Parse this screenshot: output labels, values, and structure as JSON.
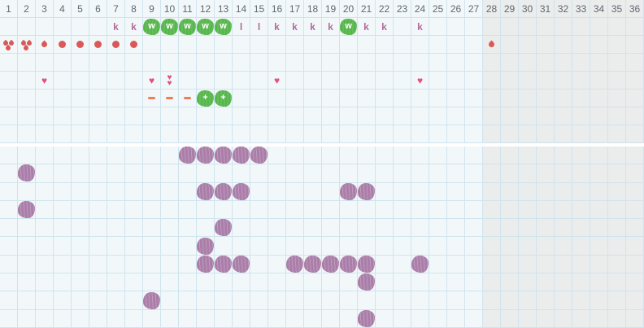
{
  "colors": {
    "bg_light": "#f2f8fa",
    "bg_gray": "#ebecec",
    "grid_line": "#cfe4ee",
    "day_number": "#5f686f",
    "letter": "#b4689d",
    "green": "#56b54b",
    "red": "#db5858",
    "heart": "#e1527d",
    "dash": "#ef7d55",
    "purple": "#aa7ea8"
  },
  "days": [
    "1",
    "2",
    "3",
    "4",
    "5",
    "6",
    "7",
    "8",
    "9",
    "10",
    "11",
    "12",
    "13",
    "14",
    "15",
    "16",
    "17",
    "18",
    "19",
    "20",
    "21",
    "22",
    "23",
    "24",
    "25",
    "26",
    "27",
    "28",
    "29",
    "30",
    "31",
    "32",
    "33",
    "34",
    "35",
    "36"
  ],
  "gray_from_day": 28,
  "icons": {
    "heart_glyph": "♥"
  },
  "top_section": {
    "rows": [
      {
        "name": "day-numbers",
        "kind": "numbers",
        "marks": []
      },
      {
        "name": "mucus-letters",
        "kind": "marks",
        "marks": [
          {
            "day": 7,
            "type": "letter",
            "label": "k"
          },
          {
            "day": 8,
            "type": "letter",
            "label": "k"
          },
          {
            "day": 9,
            "type": "green-blob",
            "label": "w"
          },
          {
            "day": 10,
            "type": "green-blob",
            "label": "w"
          },
          {
            "day": 11,
            "type": "green-blob",
            "label": "w"
          },
          {
            "day": 12,
            "type": "green-blob",
            "label": "w"
          },
          {
            "day": 13,
            "type": "green-blob",
            "label": "w"
          },
          {
            "day": 14,
            "type": "letter",
            "label": "l"
          },
          {
            "day": 15,
            "type": "letter",
            "label": "l"
          },
          {
            "day": 16,
            "type": "letter",
            "label": "k"
          },
          {
            "day": 17,
            "type": "letter",
            "label": "k"
          },
          {
            "day": 18,
            "type": "letter",
            "label": "k"
          },
          {
            "day": 19,
            "type": "letter",
            "label": "k"
          },
          {
            "day": 20,
            "type": "green-blob",
            "label": "w"
          },
          {
            "day": 21,
            "type": "letter",
            "label": "k"
          },
          {
            "day": 22,
            "type": "letter",
            "label": "k"
          },
          {
            "day": 24,
            "type": "letter",
            "label": "k"
          }
        ]
      },
      {
        "name": "bleeding",
        "kind": "marks",
        "marks": [
          {
            "day": 1,
            "type": "triple-drop"
          },
          {
            "day": 2,
            "type": "triple-drop"
          },
          {
            "day": 3,
            "type": "drop"
          },
          {
            "day": 4,
            "type": "dot"
          },
          {
            "day": 5,
            "type": "dot"
          },
          {
            "day": 6,
            "type": "dot"
          },
          {
            "day": 7,
            "type": "dot"
          },
          {
            "day": 8,
            "type": "dot"
          },
          {
            "day": 28,
            "type": "drop"
          }
        ]
      },
      {
        "name": "empty-1",
        "kind": "marks",
        "marks": []
      },
      {
        "name": "intercourse",
        "kind": "marks",
        "marks": [
          {
            "day": 3,
            "type": "heart"
          },
          {
            "day": 9,
            "type": "heart"
          },
          {
            "day": 10,
            "type": "double-heart"
          },
          {
            "day": 16,
            "type": "heart"
          },
          {
            "day": 24,
            "type": "heart"
          }
        ]
      },
      {
        "name": "tests",
        "kind": "marks",
        "marks": [
          {
            "day": 9,
            "type": "minus"
          },
          {
            "day": 10,
            "type": "minus"
          },
          {
            "day": 11,
            "type": "minus"
          },
          {
            "day": 12,
            "type": "green-blob",
            "label": "+"
          },
          {
            "day": 13,
            "type": "green-blob",
            "label": "+"
          }
        ]
      },
      {
        "name": "empty-2",
        "kind": "marks",
        "marks": []
      },
      {
        "name": "empty-3",
        "kind": "marks",
        "marks": []
      }
    ]
  },
  "bottom_section": {
    "rows": [
      {
        "name": "symptom-row-1",
        "days": [
          11,
          12,
          13,
          14,
          15
        ]
      },
      {
        "name": "symptom-row-2",
        "days": [
          2
        ]
      },
      {
        "name": "symptom-row-3",
        "days": [
          12,
          13,
          14,
          20,
          21
        ]
      },
      {
        "name": "symptom-row-4",
        "days": [
          2
        ]
      },
      {
        "name": "symptom-row-5",
        "days": [
          13
        ]
      },
      {
        "name": "symptom-row-6",
        "days": [
          12
        ]
      },
      {
        "name": "symptom-row-7",
        "days": [
          12,
          13,
          14,
          17,
          18,
          19,
          20,
          21,
          24
        ]
      },
      {
        "name": "symptom-row-8",
        "days": [
          21
        ]
      },
      {
        "name": "symptom-row-9",
        "days": [
          9
        ]
      },
      {
        "name": "symptom-row-10",
        "days": [
          21
        ]
      }
    ]
  }
}
